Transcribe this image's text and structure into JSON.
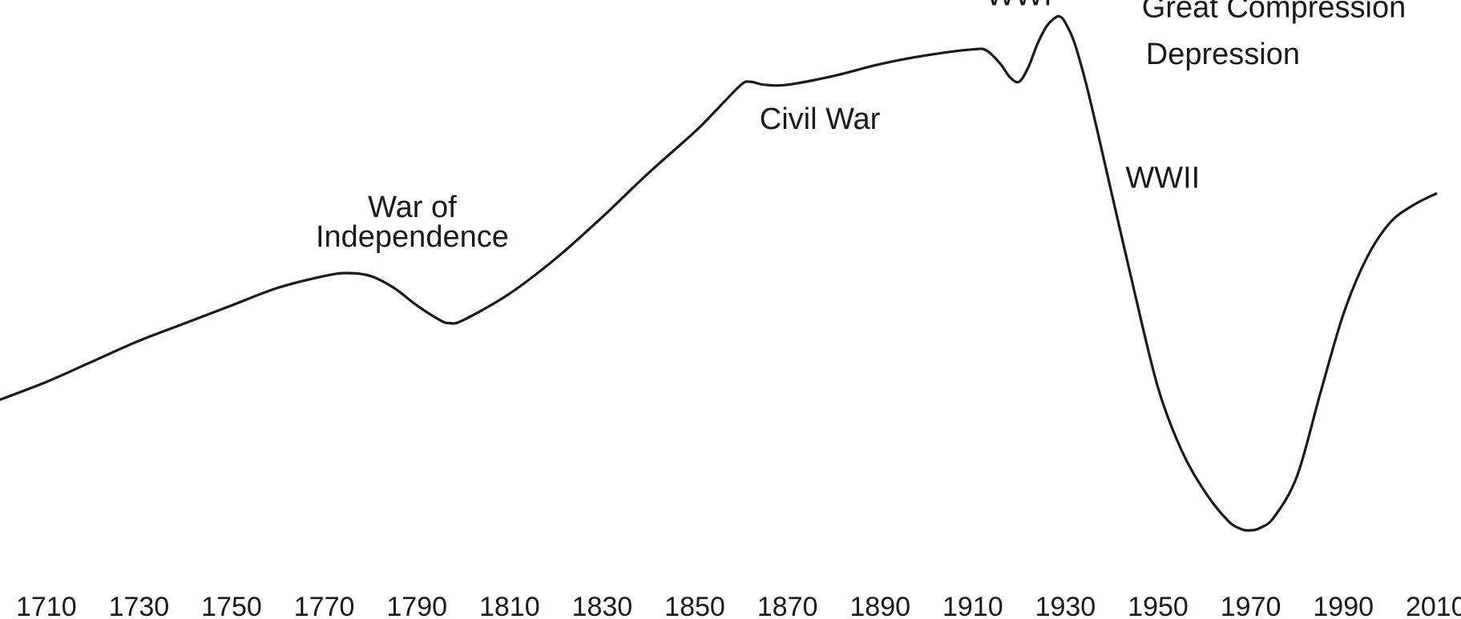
{
  "chart_data": {
    "type": "line",
    "title": "",
    "xlabel": "",
    "ylabel": "",
    "xlim": [
      1700,
      2015
    ],
    "ylim": [
      0,
      100
    ],
    "grid": false,
    "legend": "none",
    "line_color": "#1a1a1a",
    "x_ticks": [
      "1710",
      "1730",
      "1750",
      "1770",
      "1790",
      "1810",
      "1830",
      "1850",
      "1870",
      "1890",
      "1910",
      "1930",
      "1950",
      "1970",
      "1990",
      "2010"
    ],
    "series": [
      {
        "x": [
          1700,
          1710,
          1720,
          1730,
          1740,
          1750,
          1760,
          1770,
          1775,
          1780,
          1785,
          1790,
          1795,
          1797,
          1800,
          1810,
          1820,
          1830,
          1840,
          1850,
          1855,
          1860,
          1862,
          1865,
          1870,
          1880,
          1890,
          1900,
          1910,
          1913,
          1916,
          1918,
          1920,
          1922,
          1924,
          1926,
          1928,
          1929,
          1930,
          1932,
          1935,
          1940,
          1945,
          1950,
          1955,
          1960,
          1965,
          1968,
          1970,
          1972,
          1975,
          1980,
          1985,
          1990,
          1995,
          2000,
          2005,
          2010
        ],
        "y": [
          37,
          40,
          43.5,
          47,
          50,
          53,
          56,
          58,
          58.5,
          58,
          56,
          53,
          50.5,
          50,
          50.5,
          55,
          61,
          68,
          75.5,
          82.5,
          86.5,
          90.5,
          91,
          90.5,
          90.5,
          92,
          94,
          95.5,
          96.5,
          96.3,
          94,
          91.8,
          91,
          93.5,
          97.5,
          100.5,
          102,
          102,
          101,
          97.5,
          89,
          72,
          55,
          39,
          28.5,
          21.5,
          16.5,
          15,
          14.8,
          15.2,
          17,
          24,
          38,
          51.5,
          61,
          67,
          70,
          72
        ]
      }
    ],
    "annotations": [
      {
        "text": "WWI",
        "x": 1920,
        "y": 104
      },
      {
        "text": "Great Compression",
        "x": 1975,
        "y": 102
      },
      {
        "text": "Depression",
        "x": 1964,
        "y": 94
      },
      {
        "text": "Civil War",
        "x": 1877,
        "y": 83
      },
      {
        "text": "WWII",
        "x": 1951,
        "y": 73
      },
      {
        "text": "War of",
        "x": 1789,
        "y": 68
      },
      {
        "text": "Independence",
        "x": 1789,
        "y": 63
      }
    ]
  }
}
